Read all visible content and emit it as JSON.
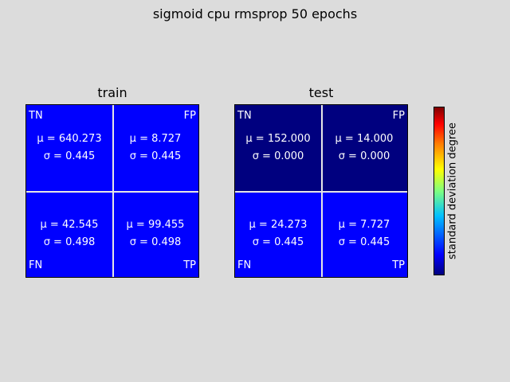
{
  "title": "sigmoid cpu rmsprop 50 epochs",
  "colorbar": {
    "label": "standard deviation degree",
    "colormap": "jet"
  },
  "colors": {
    "std_low": "#00007f",
    "std_mid": "#0000ff",
    "grid_line": "#e6e6e6",
    "background": "#dcdcdc"
  },
  "chart_data": [
    {
      "type": "heatmap",
      "title": "train",
      "cells": [
        {
          "label": "TN",
          "mean": "μ = 640.273",
          "std": "σ = 0.445",
          "mean_value": 640.273,
          "std_value": 0.445,
          "color": "#0000ff"
        },
        {
          "label": "FP",
          "mean": "μ = 8.727",
          "std": "σ = 0.445",
          "mean_value": 8.727,
          "std_value": 0.445,
          "color": "#0000ff"
        },
        {
          "label": "FN",
          "mean": "μ = 42.545",
          "std": "σ = 0.498",
          "mean_value": 42.545,
          "std_value": 0.498,
          "color": "#0000ff"
        },
        {
          "label": "TP",
          "mean": "μ = 99.455",
          "std": "σ = 0.498",
          "mean_value": 99.455,
          "std_value": 0.498,
          "color": "#0000ff"
        }
      ]
    },
    {
      "type": "heatmap",
      "title": "test",
      "cells": [
        {
          "label": "TN",
          "mean": "μ = 152.000",
          "std": "σ = 0.000",
          "mean_value": 152.0,
          "std_value": 0.0,
          "color": "#00007f"
        },
        {
          "label": "FP",
          "mean": "μ = 14.000",
          "std": "σ = 0.000",
          "mean_value": 14.0,
          "std_value": 0.0,
          "color": "#00007f"
        },
        {
          "label": "FN",
          "mean": "μ = 24.273",
          "std": "σ = 0.445",
          "mean_value": 24.273,
          "std_value": 0.445,
          "color": "#0000ff"
        },
        {
          "label": "TP",
          "mean": "μ = 7.727",
          "std": "σ = 0.445",
          "mean_value": 7.727,
          "std_value": 0.445,
          "color": "#0000ff"
        }
      ]
    }
  ]
}
